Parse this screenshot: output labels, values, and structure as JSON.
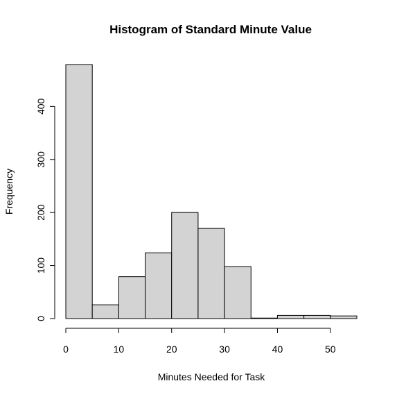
{
  "chart_data": {
    "type": "bar",
    "title": "Histogram of Standard Minute Value",
    "xlabel": "Minutes Needed for Task",
    "ylabel": "Frequency",
    "bins": [
      {
        "start": 0,
        "end": 5,
        "count": 479
      },
      {
        "start": 5,
        "end": 10,
        "count": 26
      },
      {
        "start": 10,
        "end": 15,
        "count": 79
      },
      {
        "start": 15,
        "end": 20,
        "count": 124
      },
      {
        "start": 20,
        "end": 25,
        "count": 200
      },
      {
        "start": 25,
        "end": 30,
        "count": 170
      },
      {
        "start": 30,
        "end": 35,
        "count": 98
      },
      {
        "start": 35,
        "end": 40,
        "count": 1
      },
      {
        "start": 40,
        "end": 45,
        "count": 6
      },
      {
        "start": 45,
        "end": 50,
        "count": 6
      },
      {
        "start": 50,
        "end": 55,
        "count": 5
      }
    ],
    "xticks": [
      0,
      10,
      20,
      30,
      40,
      50
    ],
    "yticks": [
      0,
      100,
      200,
      300,
      400
    ],
    "xlim": [
      0,
      55
    ],
    "ylim": [
      0,
      479
    ],
    "grid": false,
    "bar_color": "#d3d3d3"
  }
}
